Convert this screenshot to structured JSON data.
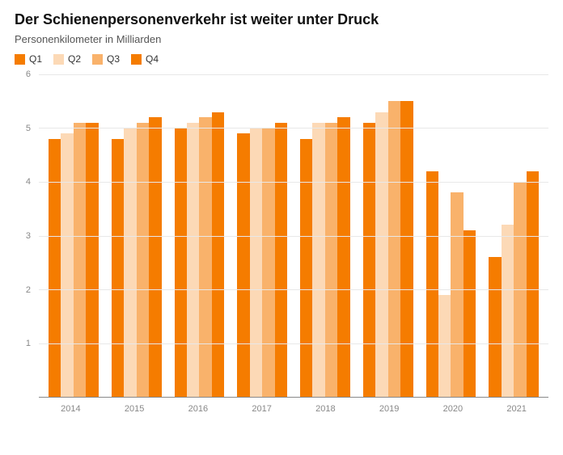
{
  "title": "Der Schienenpersonenverkehr ist weiter unter Druck",
  "subtitle": "Personenkilometer in Milliarden",
  "title_fontsize": 18,
  "subtitle_fontsize": 13,
  "legend": [
    {
      "label": "Q1",
      "color": "#f57c00"
    },
    {
      "label": "Q2",
      "color": "#fcd9b6"
    },
    {
      "label": "Q3",
      "color": "#f9b26b"
    },
    {
      "label": "Q4",
      "color": "#f57c00"
    }
  ],
  "chart": {
    "type": "grouped-bar",
    "ylim": [
      0,
      6
    ],
    "ymin_visible": 0,
    "yticks": [
      1,
      2,
      3,
      4,
      5,
      6
    ],
    "grid_color": "#e8e8e8",
    "axis_color": "#888888",
    "background_color": "#ffffff",
    "tick_fontsize": 11,
    "tick_color": "#888888",
    "bar_colors": [
      "#f57c00",
      "#fcd9b6",
      "#f9b26b",
      "#f57c00"
    ],
    "categories": [
      "2014",
      "2015",
      "2016",
      "2017",
      "2018",
      "2019",
      "2020",
      "2021"
    ],
    "series": [
      {
        "name": "Q1",
        "values": [
          4.8,
          4.8,
          5.0,
          4.9,
          4.8,
          5.1,
          4.2,
          2.6
        ]
      },
      {
        "name": "Q2",
        "values": [
          4.9,
          5.0,
          5.1,
          5.0,
          5.1,
          5.3,
          1.9,
          3.2
        ]
      },
      {
        "name": "Q3",
        "values": [
          5.1,
          5.1,
          5.2,
          5.0,
          5.1,
          5.5,
          3.8,
          4.0
        ]
      },
      {
        "name": "Q4",
        "values": [
          5.1,
          5.2,
          5.3,
          5.1,
          5.2,
          5.5,
          3.1,
          4.2
        ]
      }
    ]
  }
}
